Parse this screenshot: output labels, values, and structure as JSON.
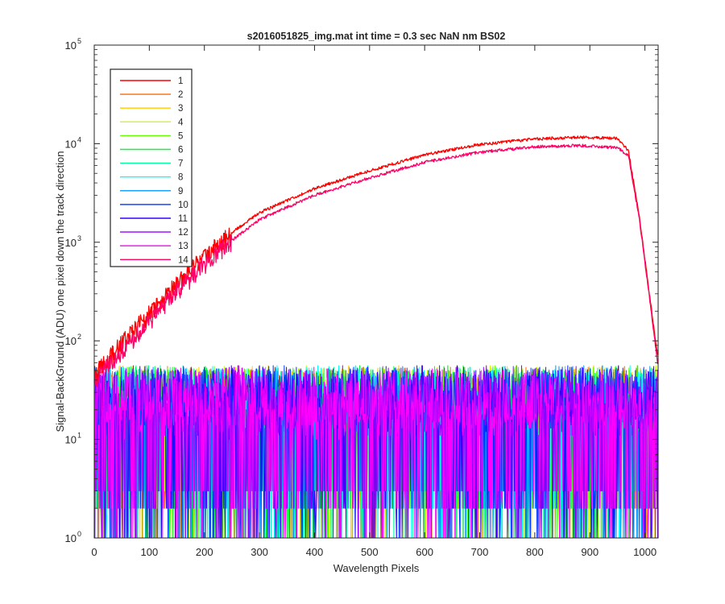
{
  "chart_data": {
    "type": "line",
    "title": "s2016051825_img.mat int time = 0.3 sec  NaN nm BS02",
    "xlabel": "Wavelength Pixels",
    "ylabel": "Signal-BackGround (ADU) one pixel down the track direction",
    "xlim": [
      0,
      1024
    ],
    "ylim": [
      1,
      100000
    ],
    "yscale": "log",
    "grid": false,
    "legend_position": "top-left",
    "x_ticks": [
      "0",
      "100",
      "200",
      "300",
      "400",
      "500",
      "600",
      "700",
      "800",
      "900",
      "1000"
    ],
    "y_ticks": [
      {
        "base": "10",
        "exp": "0"
      },
      {
        "base": "10",
        "exp": "1"
      },
      {
        "base": "10",
        "exp": "2"
      },
      {
        "base": "10",
        "exp": "3"
      },
      {
        "base": "10",
        "exp": "4"
      },
      {
        "base": "10",
        "exp": "5"
      }
    ],
    "series": [
      {
        "name": "1",
        "color": "#ff0000",
        "kind": "signal",
        "key_points": [
          [
            0,
            45
          ],
          [
            50,
            95
          ],
          [
            100,
            190
          ],
          [
            150,
            380
          ],
          [
            200,
            720
          ],
          [
            250,
            1250
          ],
          [
            300,
            2000
          ],
          [
            400,
            3500
          ],
          [
            500,
            5300
          ],
          [
            600,
            7700
          ],
          [
            700,
            9800
          ],
          [
            800,
            11200
          ],
          [
            880,
            11600
          ],
          [
            950,
            11300
          ],
          [
            970,
            8500
          ],
          [
            990,
            1800
          ],
          [
            1010,
            250
          ],
          [
            1023,
            70
          ]
        ]
      },
      {
        "name": "2",
        "color": "#ff6a00",
        "kind": "noise",
        "typical_range": [
          2,
          55
        ]
      },
      {
        "name": "3",
        "color": "#ffcc00",
        "kind": "noise",
        "typical_range": [
          2,
          50
        ]
      },
      {
        "name": "4",
        "color": "#ccff00",
        "kind": "noise",
        "typical_range": [
          2,
          50
        ]
      },
      {
        "name": "5",
        "color": "#66ff00",
        "kind": "noise",
        "typical_range": [
          2,
          50
        ]
      },
      {
        "name": "6",
        "color": "#00ff33",
        "kind": "noise",
        "typical_range": [
          2,
          50
        ]
      },
      {
        "name": "7",
        "color": "#00ff99",
        "kind": "noise",
        "typical_range": [
          2,
          50
        ]
      },
      {
        "name": "8",
        "color": "#00ffff",
        "kind": "noise",
        "typical_range": [
          2,
          50
        ]
      },
      {
        "name": "9",
        "color": "#0099ff",
        "kind": "noise",
        "typical_range": [
          2,
          50
        ]
      },
      {
        "name": "10",
        "color": "#0033ff",
        "kind": "noise",
        "typical_range": [
          2,
          50
        ]
      },
      {
        "name": "11",
        "color": "#3300ff",
        "kind": "noise",
        "typical_range": [
          2,
          50
        ]
      },
      {
        "name": "12",
        "color": "#9900ff",
        "kind": "noise",
        "typical_range": [
          2,
          50
        ]
      },
      {
        "name": "13",
        "color": "#ff00ff",
        "kind": "noise",
        "typical_range": [
          2,
          50
        ]
      },
      {
        "name": "14",
        "color": "#ff0066",
        "kind": "signal",
        "key_points": [
          [
            0,
            40
          ],
          [
            50,
            80
          ],
          [
            100,
            160
          ],
          [
            150,
            320
          ],
          [
            200,
            600
          ],
          [
            250,
            1050
          ],
          [
            300,
            1700
          ],
          [
            400,
            3000
          ],
          [
            500,
            4500
          ],
          [
            600,
            6500
          ],
          [
            700,
            8200
          ],
          [
            800,
            9300
          ],
          [
            880,
            9600
          ],
          [
            950,
            9100
          ],
          [
            970,
            7600
          ],
          [
            990,
            1700
          ],
          [
            1010,
            230
          ],
          [
            1023,
            60
          ]
        ]
      }
    ]
  }
}
